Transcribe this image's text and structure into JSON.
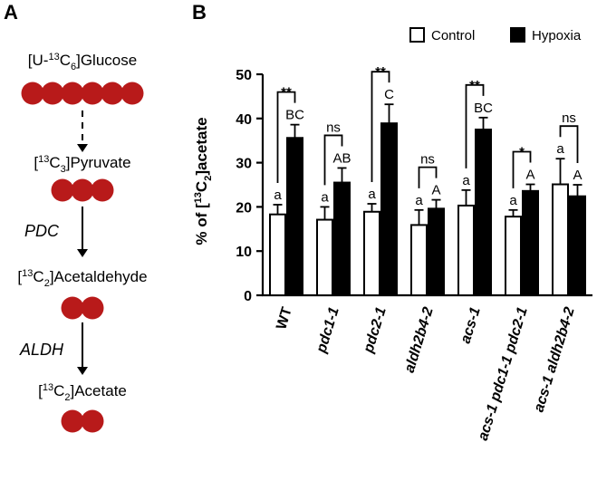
{
  "panel_a": {
    "letter": "A",
    "steps": [
      {
        "pre": "[U-",
        "sup": "13",
        "mid": "C",
        "sub": "6",
        "post": "]Glucose",
        "dots": 6
      },
      {
        "pre": "[",
        "sup": "13",
        "mid": "C",
        "sub": "3",
        "post": "]Pyruvate",
        "dots": 3
      },
      {
        "pre": "[",
        "sup": "13",
        "mid": "C",
        "sub": "2",
        "post": "]Acetaldehyde",
        "dots": 2
      },
      {
        "pre": "[",
        "sup": "13",
        "mid": "C",
        "sub": "2",
        "post": "]Acetate",
        "dots": 2
      }
    ],
    "enzymes": [
      "",
      "PDC",
      "ALDH"
    ],
    "dot_color": "#b81a1a"
  },
  "panel_b": {
    "letter": "B",
    "legend": [
      "Control",
      "Hypoxia"
    ],
    "ylabel": {
      "pre": "% of [",
      "sup": "13",
      "mid": "C",
      "sub": "2",
      "post": "]acetate"
    }
  },
  "chart_data": {
    "type": "bar",
    "categories": [
      "WT",
      "pdc1-1",
      "pdc2-1",
      "aldh2b4-2",
      "acs-1",
      "acs-1 pdc1-1 pdc2-1",
      "acs-1 aldh2b4-2"
    ],
    "series": [
      {
        "name": "Control",
        "color": "#ffffff",
        "values": [
          18.3,
          17.1,
          18.9,
          15.9,
          20.3,
          17.8,
          25.1
        ],
        "errors": [
          2.2,
          2.9,
          1.8,
          3.4,
          3.5,
          1.5,
          5.8
        ],
        "letters": [
          "a",
          "a",
          "a",
          "a",
          "a",
          "a",
          "a"
        ]
      },
      {
        "name": "Hypoxia",
        "color": "#000000",
        "values": [
          35.6,
          25.5,
          38.9,
          19.6,
          37.5,
          23.6,
          22.4
        ],
        "errors": [
          3.0,
          3.3,
          4.3,
          2.0,
          2.7,
          1.5,
          2.6
        ],
        "letters": [
          "BC",
          "AB",
          "C",
          "A",
          "BC",
          "A",
          "A"
        ]
      }
    ],
    "significance": [
      "**",
      "ns",
      "**",
      "ns",
      "**",
      "*",
      "ns"
    ],
    "yticks": [
      0,
      10,
      20,
      30,
      40,
      50
    ],
    "ylim": [
      0,
      50
    ],
    "italic_categories": [
      false,
      true,
      true,
      true,
      true,
      true,
      true
    ]
  }
}
